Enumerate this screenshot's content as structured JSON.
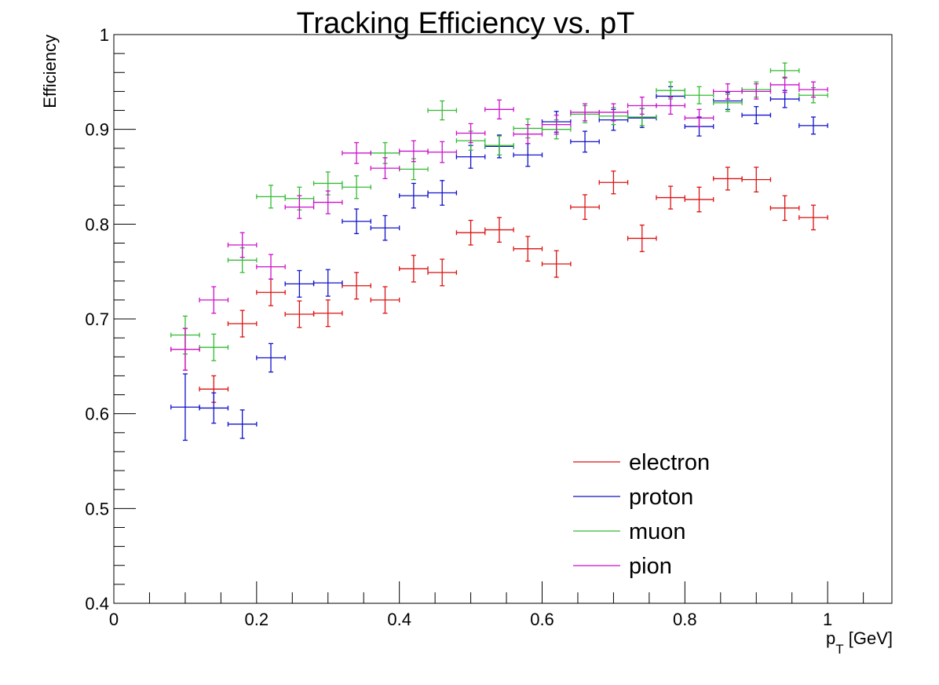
{
  "chart_data": {
    "type": "scatter",
    "title": "Tracking Efficiency vs. pT",
    "ylabel": "Efficiency",
    "xlabel_main": "p",
    "xlabel_sub": "T",
    "xlabel_unit": " [GeV]",
    "xlim": [
      0,
      1.09
    ],
    "ylim": [
      0.4,
      1.0
    ],
    "x_ticks": [
      0,
      0.2,
      0.4,
      0.6,
      0.8,
      1
    ],
    "x_tick_labels": [
      "0",
      "0.2",
      "0.4",
      "0.6",
      "0.8",
      "1"
    ],
    "y_ticks": [
      0.4,
      0.5,
      0.6,
      0.7,
      0.8,
      0.9,
      1
    ],
    "y_tick_labels": [
      "0.4",
      "0.5",
      "0.6",
      "0.7",
      "0.8",
      "0.9",
      "1"
    ],
    "x_bin_half_width": 0.02,
    "legend_position": "bottom-right",
    "series": [
      {
        "name": "electron",
        "color": "#dd1111",
        "x": [
          0.1,
          0.14,
          0.18,
          0.22,
          0.26,
          0.3,
          0.34,
          0.38,
          0.42,
          0.46,
          0.5,
          0.54,
          0.58,
          0.62,
          0.66,
          0.7,
          0.74,
          0.78,
          0.82,
          0.86,
          0.9,
          0.94,
          0.98
        ],
        "y": [
          0.668,
          0.626,
          0.695,
          0.728,
          0.705,
          0.706,
          0.735,
          0.72,
          0.753,
          0.749,
          0.791,
          0.794,
          0.774,
          0.758,
          0.818,
          0.844,
          0.785,
          0.828,
          0.826,
          0.848,
          0.847,
          0.817,
          0.807
        ],
        "yerr": [
          0.022,
          0.014,
          0.014,
          0.014,
          0.014,
          0.014,
          0.014,
          0.014,
          0.014,
          0.014,
          0.013,
          0.013,
          0.013,
          0.014,
          0.013,
          0.012,
          0.014,
          0.012,
          0.013,
          0.012,
          0.013,
          0.013,
          0.013
        ]
      },
      {
        "name": "proton",
        "color": "#1111cc",
        "x": [
          0.1,
          0.14,
          0.18,
          0.22,
          0.26,
          0.3,
          0.34,
          0.38,
          0.42,
          0.46,
          0.5,
          0.54,
          0.58,
          0.62,
          0.66,
          0.7,
          0.74,
          0.78,
          0.82,
          0.86,
          0.9,
          0.94,
          0.98
        ],
        "y": [
          0.607,
          0.606,
          0.589,
          0.659,
          0.737,
          0.738,
          0.803,
          0.796,
          0.83,
          0.833,
          0.871,
          0.882,
          0.873,
          0.908,
          0.887,
          0.91,
          0.912,
          0.935,
          0.903,
          0.93,
          0.915,
          0.932,
          0.904
        ],
        "yerr": [
          0.035,
          0.016,
          0.015,
          0.015,
          0.014,
          0.014,
          0.013,
          0.013,
          0.013,
          0.013,
          0.012,
          0.012,
          0.012,
          0.011,
          0.011,
          0.011,
          0.01,
          0.01,
          0.01,
          0.009,
          0.009,
          0.009,
          0.009
        ]
      },
      {
        "name": "muon",
        "color": "#33bb33",
        "x": [
          0.1,
          0.14,
          0.18,
          0.22,
          0.26,
          0.3,
          0.34,
          0.38,
          0.42,
          0.46,
          0.5,
          0.54,
          0.58,
          0.62,
          0.66,
          0.7,
          0.74,
          0.78,
          0.82,
          0.86,
          0.9,
          0.94,
          0.98
        ],
        "y": [
          0.683,
          0.67,
          0.762,
          0.829,
          0.827,
          0.843,
          0.839,
          0.875,
          0.858,
          0.92,
          0.888,
          0.883,
          0.901,
          0.9,
          0.916,
          0.914,
          0.913,
          0.941,
          0.936,
          0.928,
          0.942,
          0.962,
          0.936
        ],
        "yerr": [
          0.02,
          0.014,
          0.013,
          0.012,
          0.012,
          0.012,
          0.012,
          0.011,
          0.011,
          0.01,
          0.01,
          0.01,
          0.01,
          0.01,
          0.009,
          0.009,
          0.009,
          0.009,
          0.009,
          0.009,
          0.008,
          0.008,
          0.008
        ]
      },
      {
        "name": "pion",
        "color": "#cc11cc",
        "x": [
          0.1,
          0.14,
          0.18,
          0.22,
          0.26,
          0.3,
          0.34,
          0.38,
          0.42,
          0.46,
          0.5,
          0.54,
          0.58,
          0.62,
          0.66,
          0.7,
          0.74,
          0.78,
          0.82,
          0.86,
          0.9,
          0.94,
          0.98
        ],
        "y": [
          0.668,
          0.72,
          0.778,
          0.755,
          0.818,
          0.823,
          0.875,
          0.859,
          0.877,
          0.876,
          0.896,
          0.921,
          0.895,
          0.905,
          0.918,
          0.918,
          0.925,
          0.925,
          0.912,
          0.94,
          0.94,
          0.947,
          0.942
        ],
        "yerr": [
          0.022,
          0.014,
          0.013,
          0.013,
          0.012,
          0.012,
          0.011,
          0.011,
          0.011,
          0.011,
          0.01,
          0.01,
          0.01,
          0.01,
          0.009,
          0.009,
          0.009,
          0.009,
          0.009,
          0.008,
          0.008,
          0.008,
          0.008
        ]
      }
    ]
  }
}
